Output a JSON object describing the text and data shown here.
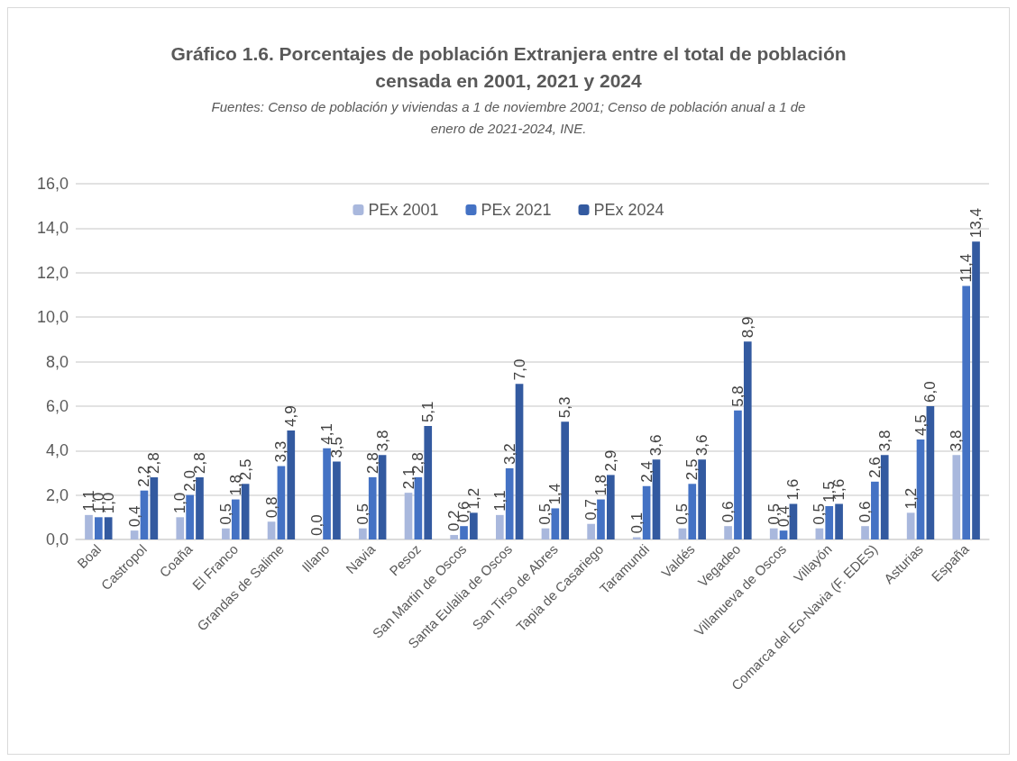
{
  "chart_data": {
    "type": "bar",
    "title": "Gráfico 1.6. Porcentajes de población Extranjera entre el total de población\ncensada en 2001, 2021 y 2024",
    "subtitle": "Fuentes: Censo de población y viviendas a 1 de noviembre 2001; Censo de población anual a 1 de\nenero de 2021-2024, INE.",
    "categories": [
      "Boal",
      "Castropol",
      "Coaña",
      "El Franco",
      "Grandas de Salime",
      "Illano",
      "Navia",
      "Pesoz",
      "San Martin de Oscos",
      "Santa Eulalia de Oscos",
      "San Tirso de Abres",
      "Tapia de Casariego",
      "Taramundi",
      "Valdés",
      "Vegadeo",
      "Villanueva de Oscos",
      "Villayón",
      "Comarca del Eo-Navia (F. EDES)",
      "Asturias",
      "España"
    ],
    "series": [
      {
        "name": "PEx 2001",
        "color": "#a9b8dd",
        "values": [
          1.1,
          0.4,
          1.0,
          0.5,
          0.8,
          0.0,
          0.5,
          2.1,
          0.2,
          1.1,
          0.5,
          0.7,
          0.1,
          0.5,
          0.6,
          0.5,
          0.5,
          0.6,
          1.2,
          3.8
        ],
        "value_labels": [
          "1,1",
          "0,4",
          "1,0",
          "0,5",
          "0,8",
          "0,0",
          "0,5",
          "2,1",
          "0,2",
          "1,1",
          "0,5",
          "0,7",
          "0,1",
          "0,5",
          "0,6",
          "0,5",
          "0,5",
          "0,6",
          "1,2",
          "3,8"
        ]
      },
      {
        "name": "PEx 2021",
        "color": "#4472c4",
        "values": [
          1.0,
          2.2,
          2.0,
          1.8,
          3.3,
          4.1,
          2.8,
          2.8,
          0.6,
          3.2,
          1.4,
          1.8,
          2.4,
          2.5,
          5.8,
          0.4,
          1.5,
          2.6,
          4.5,
          11.4
        ],
        "value_labels": [
          "1,0",
          "2,2",
          "2,0",
          "1,8",
          "3,3",
          "4,1",
          "2,8",
          "2,8",
          "0,6",
          "3,2",
          "1,4",
          "1,8",
          "2,4",
          "2,5",
          "5,8",
          "0,4",
          "1,5",
          "2,6",
          "4,5",
          "11,4"
        ]
      },
      {
        "name": "PEx 2024",
        "color": "#335aa0",
        "values": [
          1.0,
          2.8,
          2.8,
          2.5,
          4.9,
          3.5,
          3.8,
          5.1,
          1.2,
          7.0,
          5.3,
          2.9,
          3.6,
          3.6,
          8.9,
          1.6,
          1.6,
          3.8,
          6.0,
          13.4
        ],
        "value_labels": [
          "1,0",
          "2,8",
          "2,8",
          "2,5",
          "4,9",
          "3,5",
          "3,8",
          "5,1",
          "1,2",
          "7,0",
          "5,3",
          "2,9",
          "3,6",
          "3,6",
          "8,9",
          "1,6",
          "1,6",
          "3,8",
          "6,0",
          "13,4"
        ]
      }
    ],
    "ylim": [
      0,
      16
    ],
    "yticks": [
      {
        "value": 0,
        "label": "0,0"
      },
      {
        "value": 2,
        "label": "2,0"
      },
      {
        "value": 4,
        "label": "4,0"
      },
      {
        "value": 6,
        "label": "6,0"
      },
      {
        "value": 8,
        "label": "8,0"
      },
      {
        "value": 10,
        "label": "10,0"
      },
      {
        "value": 12,
        "label": "12,0"
      },
      {
        "value": 14,
        "label": "14,0"
      },
      {
        "value": 16,
        "label": "16,0"
      }
    ],
    "grid": "y",
    "legend": "top"
  }
}
